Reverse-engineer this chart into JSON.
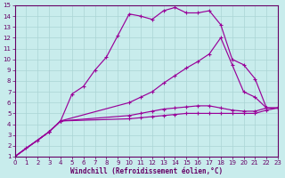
{
  "xlabel": "Windchill (Refroidissement éolien,°C)",
  "bg_color": "#c8ecec",
  "line_color": "#990099",
  "grid_color": "#aad4d4",
  "axis_color": "#660066",
  "xlim": [
    0,
    23
  ],
  "ylim": [
    1,
    15
  ],
  "xticks": [
    0,
    1,
    2,
    3,
    4,
    5,
    6,
    7,
    8,
    9,
    10,
    11,
    12,
    13,
    14,
    15,
    16,
    17,
    18,
    19,
    20,
    21,
    22,
    23
  ],
  "yticks": [
    1,
    2,
    3,
    4,
    5,
    6,
    7,
    8,
    9,
    10,
    11,
    12,
    13,
    14,
    15
  ],
  "lines": [
    {
      "x": [
        0,
        1,
        2,
        3,
        4,
        5,
        6,
        7,
        8,
        9,
        10,
        11,
        12,
        13,
        14,
        15,
        16,
        17,
        18,
        19,
        20,
        21,
        22,
        23
      ],
      "y": [
        1.0,
        1.8,
        2.5,
        3.3,
        4.3,
        6.8,
        7.5,
        9.0,
        10.2,
        12.2,
        14.2,
        14.0,
        13.7,
        14.5,
        14.8,
        14.3,
        14.3,
        14.5,
        13.2,
        10.0,
        9.5,
        8.2,
        5.5,
        5.5
      ]
    },
    {
      "x": [
        0,
        3,
        4,
        10,
        11,
        12,
        13,
        14,
        15,
        16,
        17,
        18,
        19,
        20,
        21,
        22,
        23
      ],
      "y": [
        1.0,
        3.3,
        4.3,
        6.0,
        6.5,
        7.0,
        7.8,
        8.5,
        9.2,
        9.8,
        10.5,
        12.0,
        9.5,
        7.0,
        6.5,
        5.5,
        5.5
      ]
    },
    {
      "x": [
        0,
        3,
        4,
        10,
        11,
        12,
        13,
        14,
        15,
        16,
        17,
        18,
        19,
        20,
        21,
        22,
        23
      ],
      "y": [
        1.0,
        3.3,
        4.3,
        4.8,
        5.0,
        5.2,
        5.4,
        5.5,
        5.6,
        5.7,
        5.7,
        5.5,
        5.3,
        5.2,
        5.2,
        5.5,
        5.5
      ]
    },
    {
      "x": [
        0,
        3,
        4,
        10,
        11,
        12,
        13,
        14,
        15,
        16,
        17,
        18,
        19,
        20,
        21,
        22,
        23
      ],
      "y": [
        1.0,
        3.3,
        4.3,
        4.5,
        4.6,
        4.7,
        4.8,
        4.9,
        5.0,
        5.0,
        5.0,
        5.0,
        5.0,
        5.0,
        5.0,
        5.3,
        5.5
      ]
    }
  ]
}
